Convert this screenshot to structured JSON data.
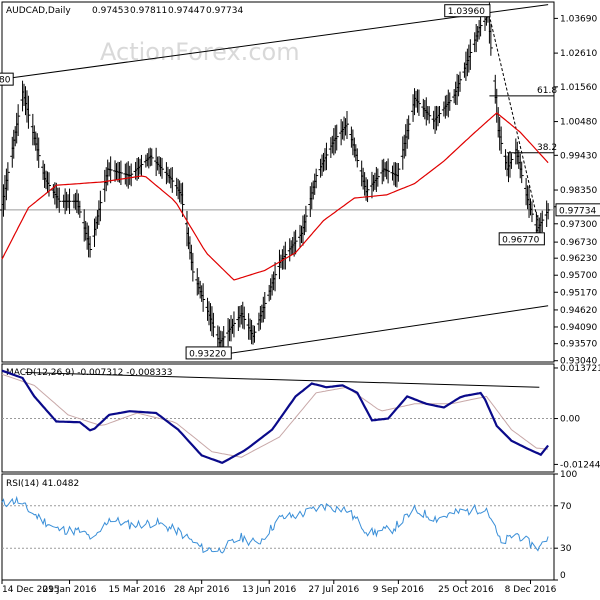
{
  "chart_data": [
    {
      "type": "ohlc",
      "title": "AUDCAD,Daily",
      "ohlc_readout": [
        "0.97453",
        "0.97811",
        "0.97447",
        "0.97734"
      ],
      "watermark": "ActionForex.com",
      "y_ticks": [
        0.9304,
        0.9357,
        0.9409,
        0.9462,
        0.9517,
        0.957,
        0.9623,
        0.9673,
        0.973,
        0.9783,
        0.9835,
        0.9943,
        1.0048,
        1.0156,
        1.0261,
        1.0369
      ],
      "y_tick_labels": [
        "0.93040",
        "0.93570",
        "0.94090",
        "0.94620",
        "0.95170",
        "0.95700",
        "0.96230",
        "0.96730",
        "0.97300",
        "0.97830",
        "0.98350",
        "0.99430",
        "1.00480",
        "1.01560",
        "1.02610",
        "1.03690"
      ],
      "ylim": [
        0.93,
        1.042
      ],
      "last_price": 0.97734,
      "last_price_label": "0.97734",
      "swing_labels": [
        {
          "label": "1.03960",
          "value": 1.0396,
          "date": "2016-11-09"
        },
        {
          "label": "0.96770",
          "value": 0.9677,
          "date": "2016-12-12"
        },
        {
          "label": "0.93220",
          "value": 0.9322,
          "date": "2016-05-10"
        },
        {
          "label": "80",
          "value": 1.018,
          "date": "2015-12-14"
        }
      ],
      "fib_levels": [
        {
          "label": "61.8",
          "value": 1.0128
        },
        {
          "label": "38.2",
          "value": 0.9951
        }
      ],
      "channel_lines": [
        {
          "from": {
            "date": "2015-12-14",
            "value": 1.018
          },
          "to": {
            "date": "2016-12-20",
            "value": 1.0412
          }
        },
        {
          "from": {
            "date": "2016-05-10",
            "value": 0.9322
          },
          "to": {
            "date": "2016-12-20",
            "value": 0.9475
          }
        }
      ],
      "trend_line": {
        "from": {
          "date": "2016-11-09",
          "value": 1.0396
        },
        "to": {
          "date": "2016-12-13",
          "value": 0.974
        }
      },
      "moving_average_anchors": [
        {
          "date": "2015-12-14",
          "value": 0.962
        },
        {
          "date": "2016-01-01",
          "value": 0.978
        },
        {
          "date": "2016-01-20",
          "value": 0.985
        },
        {
          "date": "2016-02-20",
          "value": 0.986
        },
        {
          "date": "2016-03-20",
          "value": 0.988
        },
        {
          "date": "2016-04-10",
          "value": 0.98
        },
        {
          "date": "2016-05-01",
          "value": 0.964
        },
        {
          "date": "2016-05-20",
          "value": 0.9555
        },
        {
          "date": "2016-06-10",
          "value": 0.9585
        },
        {
          "date": "2016-07-01",
          "value": 0.964
        },
        {
          "date": "2016-07-20",
          "value": 0.974
        },
        {
          "date": "2016-08-10",
          "value": 0.981
        },
        {
          "date": "2016-09-01",
          "value": 0.982
        },
        {
          "date": "2016-09-20",
          "value": 0.9855
        },
        {
          "date": "2016-10-10",
          "value": 0.9925
        },
        {
          "date": "2016-10-30",
          "value": 1.001
        },
        {
          "date": "2016-11-15",
          "value": 1.0075
        },
        {
          "date": "2016-12-01",
          "value": 1.0015
        },
        {
          "date": "2016-12-20",
          "value": 0.992
        }
      ],
      "close_anchors": [
        {
          "date": "2015-12-14",
          "value": 0.979
        },
        {
          "date": "2015-12-28",
          "value": 1.014
        },
        {
          "date": "2016-01-12",
          "value": 0.987
        },
        {
          "date": "2016-01-22",
          "value": 0.98
        },
        {
          "date": "2016-02-03",
          "value": 0.98
        },
        {
          "date": "2016-02-12",
          "value": 0.965
        },
        {
          "date": "2016-02-24",
          "value": 0.99
        },
        {
          "date": "2016-03-10",
          "value": 0.988
        },
        {
          "date": "2016-03-24",
          "value": 0.994
        },
        {
          "date": "2016-04-07",
          "value": 0.987
        },
        {
          "date": "2016-04-14",
          "value": 0.982
        },
        {
          "date": "2016-04-22",
          "value": 0.958
        },
        {
          "date": "2016-05-10",
          "value": 0.936
        },
        {
          "date": "2016-05-25",
          "value": 0.945
        },
        {
          "date": "2016-06-02",
          "value": 0.938
        },
        {
          "date": "2016-06-20",
          "value": 0.961
        },
        {
          "date": "2016-07-05",
          "value": 0.97
        },
        {
          "date": "2016-07-15",
          "value": 0.988
        },
        {
          "date": "2016-07-27",
          "value": 0.999
        },
        {
          "date": "2016-08-05",
          "value": 1.004
        },
        {
          "date": "2016-08-18",
          "value": 0.983
        },
        {
          "date": "2016-08-30",
          "value": 0.99
        },
        {
          "date": "2016-09-08",
          "value": 0.988
        },
        {
          "date": "2016-09-20",
          "value": 1.012
        },
        {
          "date": "2016-10-03",
          "value": 1.005
        },
        {
          "date": "2016-10-17",
          "value": 1.013
        },
        {
          "date": "2016-10-27",
          "value": 1.025
        },
        {
          "date": "2016-11-03",
          "value": 1.034
        },
        {
          "date": "2016-11-09",
          "value": 1.038
        },
        {
          "date": "2016-11-16",
          "value": 1.002
        },
        {
          "date": "2016-11-22",
          "value": 0.99
        },
        {
          "date": "2016-11-28",
          "value": 0.996
        },
        {
          "date": "2016-12-05",
          "value": 0.982
        },
        {
          "date": "2016-12-09",
          "value": 0.976
        },
        {
          "date": "2016-12-12",
          "value": 0.971
        },
        {
          "date": "2016-12-20",
          "value": 0.9773
        }
      ],
      "x_tick_labels": [
        "14 Dec 2015",
        "29 Jan 2016",
        "15 Mar 2016",
        "28 Apr 2016",
        "13 Jun 2016",
        "27 Jul 2016",
        "9 Sep 2016",
        "25 Oct 2016",
        "8 Dec 2016"
      ],
      "x_tick_dates": [
        "2015-12-14",
        "2016-01-29",
        "2016-03-15",
        "2016-04-28",
        "2016-06-13",
        "2016-07-27",
        "2016-09-09",
        "2016-10-25",
        "2016-12-08"
      ],
      "x_range": [
        "2015-12-14",
        "2016-12-24"
      ]
    },
    {
      "type": "line",
      "title": "MACD(12,26,9) -0.007312 -0.008333",
      "y_tick_labels": [
        "0.013721",
        "0.00",
        "-0.012442"
      ],
      "y_ticks": [
        0.013721,
        0.0,
        -0.012442
      ],
      "ylim": [
        -0.0145,
        0.0148
      ],
      "zero_line": true,
      "series_anchors": [
        {
          "date": "2015-12-14",
          "value": 0.013
        },
        {
          "date": "2015-12-28",
          "value": 0.011
        },
        {
          "date": "2016-01-05",
          "value": 0.006
        },
        {
          "date": "2016-01-20",
          "value": -0.0008
        },
        {
          "date": "2016-02-05",
          "value": -0.001
        },
        {
          "date": "2016-02-13",
          "value": -0.0035
        },
        {
          "date": "2016-02-25",
          "value": 0.001
        },
        {
          "date": "2016-03-10",
          "value": 0.002
        },
        {
          "date": "2016-03-28",
          "value": 0.0015
        },
        {
          "date": "2016-04-12",
          "value": -0.003
        },
        {
          "date": "2016-04-28",
          "value": -0.01
        },
        {
          "date": "2016-05-12",
          "value": -0.012
        },
        {
          "date": "2016-05-28",
          "value": -0.0085
        },
        {
          "date": "2016-06-15",
          "value": -0.003
        },
        {
          "date": "2016-07-01",
          "value": 0.006
        },
        {
          "date": "2016-07-12",
          "value": 0.0095
        },
        {
          "date": "2016-07-22",
          "value": 0.0085
        },
        {
          "date": "2016-08-02",
          "value": 0.009
        },
        {
          "date": "2016-08-12",
          "value": 0.007
        },
        {
          "date": "2016-08-22",
          "value": -0.0005
        },
        {
          "date": "2016-09-02",
          "value": 0.0
        },
        {
          "date": "2016-09-15",
          "value": 0.006
        },
        {
          "date": "2016-09-28",
          "value": 0.004
        },
        {
          "date": "2016-10-10",
          "value": 0.003
        },
        {
          "date": "2016-10-22",
          "value": 0.006
        },
        {
          "date": "2016-11-05",
          "value": 0.007
        },
        {
          "date": "2016-11-15",
          "value": -0.002
        },
        {
          "date": "2016-11-25",
          "value": -0.006
        },
        {
          "date": "2016-12-05",
          "value": -0.008
        },
        {
          "date": "2016-12-15",
          "value": -0.0098
        },
        {
          "date": "2016-12-20",
          "value": -0.0073
        }
      ],
      "signal_anchors": [
        {
          "date": "2015-12-14",
          "value": 0.012
        },
        {
          "date": "2016-01-05",
          "value": 0.009
        },
        {
          "date": "2016-01-28",
          "value": 0.001
        },
        {
          "date": "2016-02-20",
          "value": -0.002
        },
        {
          "date": "2016-03-15",
          "value": 0.0015
        },
        {
          "date": "2016-04-10",
          "value": -0.001
        },
        {
          "date": "2016-05-05",
          "value": -0.009
        },
        {
          "date": "2016-05-25",
          "value": -0.0105
        },
        {
          "date": "2016-06-20",
          "value": -0.005
        },
        {
          "date": "2016-07-15",
          "value": 0.007
        },
        {
          "date": "2016-08-05",
          "value": 0.0085
        },
        {
          "date": "2016-08-28",
          "value": 0.002
        },
        {
          "date": "2016-09-20",
          "value": 0.004
        },
        {
          "date": "2016-10-15",
          "value": 0.004
        },
        {
          "date": "2016-11-08",
          "value": 0.006
        },
        {
          "date": "2016-11-25",
          "value": -0.003
        },
        {
          "date": "2016-12-12",
          "value": -0.008
        },
        {
          "date": "2016-12-20",
          "value": -0.0083
        }
      ],
      "trend_line": {
        "from": {
          "date": "2015-12-30",
          "value": 0.0125
        },
        "to": {
          "date": "2016-12-14",
          "value": 0.0085
        }
      }
    },
    {
      "type": "line",
      "title": "RSI(14) 41.0482",
      "y_ticks": [
        100,
        70,
        30,
        0
      ],
      "y_tick_labels": [
        "100",
        "70",
        "30",
        "0"
      ],
      "ylim": [
        0,
        100
      ],
      "levels": [
        70,
        30
      ],
      "series_anchors": [
        {
          "date": "2015-12-14",
          "value": 72
        },
        {
          "date": "2015-12-24",
          "value": 75
        },
        {
          "date": "2016-01-05",
          "value": 62
        },
        {
          "date": "2016-01-20",
          "value": 48
        },
        {
          "date": "2016-02-05",
          "value": 46
        },
        {
          "date": "2016-02-15",
          "value": 38
        },
        {
          "date": "2016-02-25",
          "value": 58
        },
        {
          "date": "2016-03-10",
          "value": 52
        },
        {
          "date": "2016-03-28",
          "value": 54
        },
        {
          "date": "2016-04-12",
          "value": 46
        },
        {
          "date": "2016-04-28",
          "value": 30
        },
        {
          "date": "2016-05-10",
          "value": 28
        },
        {
          "date": "2016-05-25",
          "value": 40
        },
        {
          "date": "2016-06-05",
          "value": 34
        },
        {
          "date": "2016-06-20",
          "value": 58
        },
        {
          "date": "2016-07-05",
          "value": 62
        },
        {
          "date": "2016-07-20",
          "value": 70
        },
        {
          "date": "2016-08-05",
          "value": 66
        },
        {
          "date": "2016-08-20",
          "value": 44
        },
        {
          "date": "2016-09-05",
          "value": 48
        },
        {
          "date": "2016-09-20",
          "value": 66
        },
        {
          "date": "2016-10-05",
          "value": 58
        },
        {
          "date": "2016-10-20",
          "value": 64
        },
        {
          "date": "2016-11-08",
          "value": 68
        },
        {
          "date": "2016-11-18",
          "value": 34
        },
        {
          "date": "2016-11-28",
          "value": 44
        },
        {
          "date": "2016-12-08",
          "value": 34
        },
        {
          "date": "2016-12-14",
          "value": 30
        },
        {
          "date": "2016-12-20",
          "value": 41
        }
      ]
    }
  ]
}
